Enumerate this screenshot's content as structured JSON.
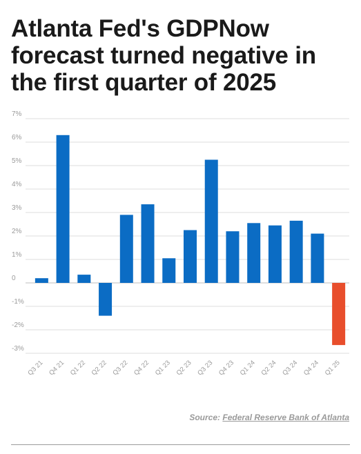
{
  "title": "Atlanta Fed's GDPNow forecast turned negative in the first quarter of 2025",
  "source": {
    "label": "Source:",
    "name": "Federal Reserve Bank of Atlanta"
  },
  "colors": {
    "positive": "#0b6cc4",
    "negative": "#e84e2c",
    "grid": "#dedede",
    "tick": "#9a9a9a"
  },
  "chart_data": {
    "type": "bar",
    "categories": [
      "Q3 21",
      "Q4 21",
      "Q1 22",
      "Q2 22",
      "Q3 22",
      "Q4 22",
      "Q1 23",
      "Q2 23",
      "Q3 23",
      "Q4 23",
      "Q1 24",
      "Q2 24",
      "Q3 24",
      "Q4 24",
      "Q1 25"
    ],
    "values": [
      0.2,
      6.3,
      0.35,
      -1.4,
      2.9,
      3.35,
      1.05,
      2.25,
      5.25,
      2.2,
      2.55,
      2.45,
      2.65,
      2.1,
      -2.65
    ],
    "ylim": [
      -3,
      7
    ],
    "yticks": [
      7,
      6,
      5,
      4,
      3,
      2,
      1,
      0,
      -1,
      -2,
      -3
    ],
    "ytick_labels": [
      "7%",
      "6%",
      "5%",
      "4%",
      "3%",
      "2%",
      "1%",
      "0",
      "-1%",
      "-2%",
      "-3%"
    ],
    "grid": true
  }
}
